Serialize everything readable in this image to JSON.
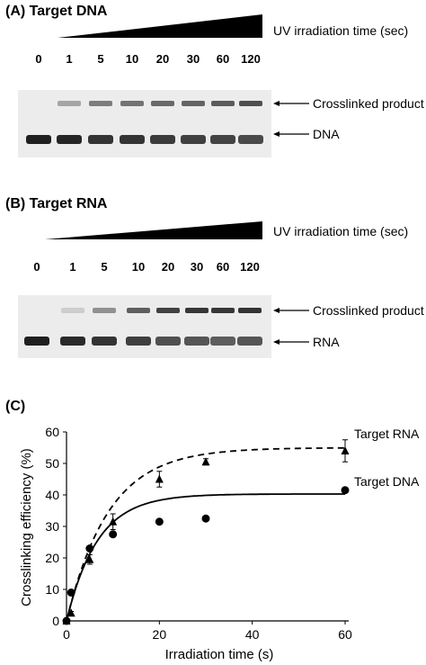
{
  "panel_a": {
    "title": "(A) Target DNA",
    "uv_label": "UV irradiation time (sec)",
    "times": [
      "0",
      "1",
      "5",
      "10",
      "20",
      "30",
      "60",
      "120"
    ],
    "upper_band_label": "Crosslinked product",
    "lower_band_label": "DNA",
    "upper_band_intensity": [
      0.0,
      0.35,
      0.55,
      0.6,
      0.65,
      0.68,
      0.72,
      0.78
    ],
    "lower_band_intensity": [
      0.95,
      0.92,
      0.85,
      0.85,
      0.82,
      0.8,
      0.78,
      0.75
    ]
  },
  "panel_b": {
    "title": "(B) Target RNA",
    "uv_label": "UV irradiation time (sec)",
    "times": [
      "0",
      "1",
      "5",
      "10",
      "20",
      "30",
      "60",
      "120"
    ],
    "upper_band_label": "Crosslinked product",
    "lower_band_label": "RNA",
    "upper_band_intensity": [
      0.0,
      0.15,
      0.45,
      0.7,
      0.85,
      0.9,
      0.9,
      0.92
    ],
    "lower_band_intensity": [
      0.95,
      0.9,
      0.85,
      0.8,
      0.72,
      0.7,
      0.66,
      0.7
    ]
  },
  "panel_c": {
    "title": "(C)"
  },
  "chart_data": {
    "type": "scatter",
    "xlabel": "Irradiation time (s)",
    "ylabel": "Crosslinking efficiency (%)",
    "xlim": [
      0,
      60
    ],
    "ylim": [
      0,
      60
    ],
    "xticks": [
      0,
      20,
      40,
      60
    ],
    "yticks": [
      0,
      10,
      20,
      30,
      40,
      50,
      60
    ],
    "grid": false,
    "series": [
      {
        "name": "Target RNA",
        "marker": "triangle",
        "fit": "dashed",
        "fit_plateau": 55,
        "fit_rate": 0.11,
        "x": [
          0,
          1,
          5,
          10,
          20,
          30,
          60
        ],
        "y": [
          0,
          2.5,
          19.5,
          31.5,
          45,
          50.5,
          54
        ],
        "yerr": [
          0,
          0.5,
          1.5,
          2.5,
          2.5,
          1,
          3.5
        ]
      },
      {
        "name": "Target DNA",
        "marker": "circle",
        "fit": "solid",
        "fit_plateau": 40.3,
        "fit_rate": 0.15,
        "x": [
          0,
          1,
          5,
          10,
          20,
          30,
          60
        ],
        "y": [
          0,
          9,
          23,
          27.5,
          31.5,
          32.5,
          41.5
        ],
        "yerr": [
          0,
          0,
          0,
          0,
          0,
          0,
          0
        ]
      }
    ]
  }
}
